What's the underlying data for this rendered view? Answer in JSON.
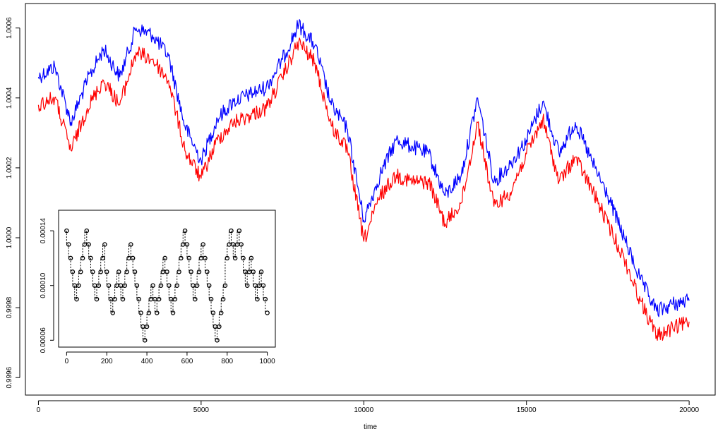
{
  "chart_data": [
    {
      "type": "line",
      "title": "",
      "xlabel": "time",
      "ylabel": "",
      "xlim": [
        -400,
        20800
      ],
      "ylim": [
        0.99955,
        1.00067
      ],
      "x_ticks": [
        0,
        5000,
        10000,
        15000,
        20000
      ],
      "x_tick_labels": [
        "0",
        "5000",
        "10000",
        "15000",
        "20000"
      ],
      "y_ticks": [
        0.9996,
        0.9998,
        1.0,
        1.0002,
        1.0004,
        1.0006
      ],
      "y_tick_labels": [
        "0.9996",
        "0.9998",
        "1.0000",
        "1.0002",
        "1.0004",
        "1.0006"
      ],
      "grid": false,
      "series": [
        {
          "color": "#0000ff",
          "x": [
            0,
            500,
            1000,
            1500,
            2000,
            2500,
            3000,
            3500,
            4000,
            4500,
            5000,
            5500,
            6000,
            6500,
            7000,
            7500,
            8000,
            8500,
            9000,
            9500,
            10000,
            10500,
            11000,
            11500,
            12000,
            12500,
            13000,
            13500,
            14000,
            14500,
            15000,
            15500,
            16000,
            16500,
            17000,
            17500,
            18000,
            18500,
            19000,
            19500,
            20000
          ],
          "y": [
            1.00046,
            1.00049,
            1.00033,
            1.00045,
            1.00054,
            1.00046,
            1.0006,
            1.00058,
            1.00052,
            1.00032,
            1.00022,
            1.00034,
            1.00039,
            1.00041,
            1.00043,
            1.00051,
            1.00061,
            1.00055,
            1.00038,
            1.00031,
            1.00005,
            1.00018,
            1.00028,
            1.00026,
            1.00024,
            1.00012,
            1.00018,
            1.0004,
            1.00016,
            1.00021,
            1.00028,
            1.00039,
            1.00024,
            1.00033,
            1.00022,
            1.00012,
            1.0,
            0.99988,
            0.99979,
            0.99981,
            0.99982
          ]
        },
        {
          "color": "#ff0000",
          "x": [
            0,
            500,
            1000,
            1500,
            2000,
            2500,
            3000,
            3500,
            4000,
            4500,
            5000,
            5500,
            6000,
            6500,
            7000,
            7500,
            8000,
            8500,
            9000,
            9500,
            10000,
            10500,
            11000,
            11500,
            12000,
            12500,
            13000,
            13500,
            14000,
            14500,
            15000,
            15500,
            16000,
            16500,
            17000,
            17500,
            18000,
            18500,
            19000,
            19500,
            20000
          ],
          "y": [
            1.00038,
            1.0004,
            1.00025,
            1.00037,
            1.00045,
            1.00038,
            1.00053,
            1.00051,
            1.00045,
            1.00025,
            1.00017,
            1.00028,
            1.00033,
            1.00035,
            1.00037,
            1.00046,
            1.00056,
            1.0005,
            1.00032,
            1.00025,
            0.99999,
            1.00012,
            1.00018,
            1.00016,
            1.00016,
            1.00004,
            1.0001,
            1.00033,
            1.00009,
            1.00013,
            1.00024,
            1.00034,
            1.00016,
            1.00023,
            1.00014,
            1.00004,
            0.99994,
            0.99982,
            0.99972,
            0.99974,
            0.99976
          ]
        }
      ]
    },
    {
      "type": "scatter",
      "title": "",
      "xlabel": "",
      "ylabel": "",
      "xlim": [
        -40,
        1040
      ],
      "ylim": [
        5.5e-05,
        0.000155
      ],
      "x_ticks": [
        0,
        200,
        400,
        600,
        800,
        1000
      ],
      "x_tick_labels": [
        "0",
        "200",
        "400",
        "600",
        "800",
        "1000"
      ],
      "y_ticks": [
        6e-05,
        0.0001,
        0.00014
      ],
      "y_tick_labels": [
        "0.00006",
        "0.00010",
        "0.00014"
      ],
      "grid": false,
      "marker": "open-circle",
      "color": "#000000",
      "x": [
        0,
        10,
        20,
        30,
        40,
        50,
        60,
        70,
        80,
        90,
        100,
        110,
        120,
        130,
        140,
        150,
        160,
        170,
        180,
        190,
        200,
        210,
        220,
        230,
        240,
        250,
        260,
        270,
        280,
        290,
        300,
        310,
        320,
        330,
        340,
        350,
        360,
        370,
        380,
        390,
        400,
        410,
        420,
        430,
        440,
        450,
        460,
        470,
        480,
        490,
        500,
        510,
        520,
        530,
        540,
        550,
        560,
        570,
        580,
        590,
        600,
        610,
        620,
        630,
        640,
        650,
        660,
        670,
        680,
        690,
        700,
        710,
        720,
        730,
        740,
        750,
        760,
        770,
        780,
        790,
        800,
        810,
        820,
        830,
        840,
        850,
        860,
        870,
        880,
        890,
        900,
        910,
        920,
        930,
        940,
        950,
        960,
        970,
        980,
        990,
        1000
      ],
      "y": [
        0.00014,
        0.00013,
        0.00012,
        0.00011,
        0.0001,
        9e-05,
        0.0001,
        0.00011,
        0.00012,
        0.00013,
        0.00014,
        0.00013,
        0.00012,
        0.00011,
        0.0001,
        9e-05,
        0.0001,
        0.00011,
        0.00012,
        0.00013,
        0.00011,
        0.0001,
        9e-05,
        8e-05,
        9e-05,
        0.0001,
        0.00011,
        0.0001,
        9e-05,
        0.0001,
        0.00011,
        0.00012,
        0.00013,
        0.00012,
        0.00011,
        0.0001,
        9e-05,
        8e-05,
        7e-05,
        6e-05,
        7e-05,
        8e-05,
        9e-05,
        0.0001,
        9e-05,
        8e-05,
        9e-05,
        0.0001,
        0.00011,
        0.00012,
        0.00011,
        0.0001,
        9e-05,
        8e-05,
        9e-05,
        0.0001,
        0.00011,
        0.00012,
        0.00013,
        0.00014,
        0.00013,
        0.00012,
        0.00011,
        0.0001,
        9e-05,
        0.0001,
        0.00011,
        0.00012,
        0.00013,
        0.00012,
        0.00011,
        0.0001,
        9e-05,
        8e-05,
        7e-05,
        6e-05,
        7e-05,
        8e-05,
        9e-05,
        0.0001,
        0.00012,
        0.00013,
        0.00014,
        0.00013,
        0.00012,
        0.00013,
        0.00014,
        0.00013,
        0.00012,
        0.00011,
        0.0001,
        0.00011,
        0.00012,
        0.00011,
        0.0001,
        9e-05,
        0.0001,
        0.00011,
        0.0001,
        9e-05,
        8e-05
      ]
    }
  ]
}
